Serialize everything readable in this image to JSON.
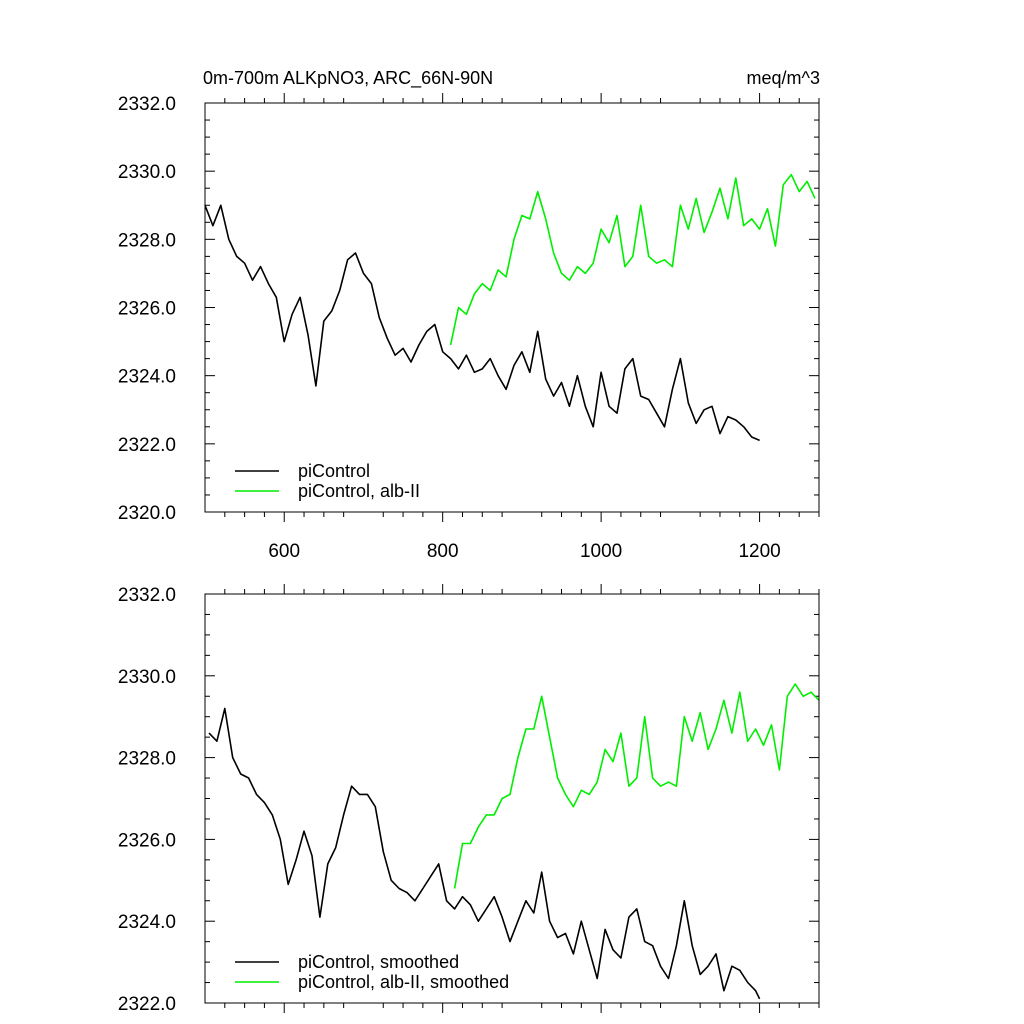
{
  "chart_data": [
    {
      "type": "line",
      "title": "0m-700m ALKpNO3, ARC_66N-90N",
      "units": "meq/m^3",
      "xlim": [
        500,
        1275
      ],
      "ylim": [
        2320.0,
        2332.0
      ],
      "x_ticks": [
        600,
        800,
        1000,
        1200
      ],
      "x_tick_labels": [
        "600",
        "800",
        "1000",
        "1200"
      ],
      "y_ticks": [
        2320.0,
        2322.0,
        2324.0,
        2326.0,
        2328.0,
        2330.0,
        2332.0
      ],
      "y_tick_labels": [
        "2320.0",
        "2322.0",
        "2324.0",
        "2326.0",
        "2328.0",
        "2330.0",
        "2332.0"
      ],
      "legend_position": "bottom-left",
      "series": [
        {
          "name": "piControl",
          "color": "#000000",
          "x": [
            500,
            510,
            520,
            530,
            540,
            550,
            560,
            570,
            580,
            590,
            600,
            610,
            620,
            630,
            640,
            650,
            660,
            670,
            680,
            690,
            700,
            710,
            720,
            730,
            740,
            750,
            760,
            770,
            780,
            790,
            800,
            810,
            820,
            830,
            840,
            850,
            860,
            870,
            880,
            890,
            900,
            910,
            920,
            930,
            940,
            950,
            960,
            970,
            980,
            990,
            1000,
            1010,
            1020,
            1030,
            1040,
            1050,
            1060,
            1070,
            1080,
            1090,
            1100,
            1110,
            1120,
            1130,
            1140,
            1150,
            1160,
            1170,
            1180,
            1190,
            1200
          ],
          "y": [
            2329.0,
            2328.4,
            2329.0,
            2328.0,
            2327.5,
            2327.3,
            2326.8,
            2327.2,
            2326.7,
            2326.3,
            2325.0,
            2325.8,
            2326.3,
            2325.2,
            2323.7,
            2325.6,
            2325.9,
            2326.5,
            2327.4,
            2327.6,
            2327.0,
            2326.7,
            2325.7,
            2325.1,
            2324.6,
            2324.8,
            2324.4,
            2324.9,
            2325.3,
            2325.5,
            2324.7,
            2324.5,
            2324.2,
            2324.6,
            2324.1,
            2324.2,
            2324.5,
            2324.0,
            2323.6,
            2324.3,
            2324.7,
            2324.1,
            2325.3,
            2323.9,
            2323.4,
            2323.8,
            2323.1,
            2324.0,
            2323.1,
            2322.5,
            2324.1,
            2323.1,
            2322.9,
            2324.2,
            2324.5,
            2323.4,
            2323.3,
            2322.9,
            2322.5,
            2323.6,
            2324.5,
            2323.2,
            2322.6,
            2323.0,
            2323.1,
            2322.3,
            2322.8,
            2322.7,
            2322.5,
            2322.2,
            2322.1
          ]
        },
        {
          "name": "piControl, alb-II",
          "color": "#00ee00",
          "x": [
            810,
            820,
            830,
            840,
            850,
            860,
            870,
            880,
            890,
            900,
            910,
            920,
            930,
            940,
            950,
            960,
            970,
            980,
            990,
            1000,
            1010,
            1020,
            1030,
            1040,
            1050,
            1060,
            1070,
            1080,
            1090,
            1100,
            1110,
            1120,
            1130,
            1140,
            1150,
            1160,
            1170,
            1180,
            1190,
            1200,
            1210,
            1220,
            1230,
            1240,
            1250,
            1260,
            1270
          ],
          "y": [
            2324.9,
            2326.0,
            2325.8,
            2326.4,
            2326.7,
            2326.5,
            2327.1,
            2326.9,
            2328.0,
            2328.7,
            2328.6,
            2329.4,
            2328.6,
            2327.6,
            2327.0,
            2326.8,
            2327.2,
            2327.0,
            2327.3,
            2328.3,
            2327.9,
            2328.7,
            2327.2,
            2327.5,
            2329.0,
            2327.5,
            2327.3,
            2327.4,
            2327.2,
            2329.0,
            2328.3,
            2329.2,
            2328.2,
            2328.8,
            2329.5,
            2328.6,
            2329.8,
            2328.4,
            2328.6,
            2328.3,
            2328.9,
            2327.8,
            2329.6,
            2329.9,
            2329.4,
            2329.7,
            2329.2
          ]
        }
      ]
    },
    {
      "type": "line",
      "xlim": [
        500,
        1275
      ],
      "ylim": [
        2322.0,
        2332.0
      ],
      "x_ticks": [
        600,
        800,
        1000,
        1200
      ],
      "y_ticks": [
        2322.0,
        2324.0,
        2326.0,
        2328.0,
        2330.0,
        2332.0
      ],
      "y_tick_labels": [
        "2322.0",
        "2324.0",
        "2326.0",
        "2328.0",
        "2330.0",
        "2332.0"
      ],
      "legend_position": "bottom-left",
      "series": [
        {
          "name": "piControl, smoothed",
          "color": "#000000",
          "x": [
            505,
            515,
            525,
            535,
            545,
            555,
            565,
            575,
            585,
            595,
            605,
            615,
            625,
            635,
            645,
            655,
            665,
            675,
            685,
            695,
            705,
            715,
            725,
            735,
            745,
            755,
            765,
            775,
            785,
            795,
            805,
            815,
            825,
            835,
            845,
            855,
            865,
            875,
            885,
            895,
            905,
            915,
            925,
            935,
            945,
            955,
            965,
            975,
            985,
            995,
            1005,
            1015,
            1025,
            1035,
            1045,
            1055,
            1065,
            1075,
            1085,
            1095,
            1105,
            1115,
            1125,
            1135,
            1145,
            1155,
            1165,
            1175,
            1185,
            1195,
            1200
          ],
          "y": [
            2328.6,
            2328.4,
            2329.2,
            2328.0,
            2327.6,
            2327.5,
            2327.1,
            2326.9,
            2326.6,
            2326.0,
            2324.9,
            2325.5,
            2326.2,
            2325.6,
            2324.1,
            2325.4,
            2325.8,
            2326.6,
            2327.3,
            2327.1,
            2327.1,
            2326.8,
            2325.7,
            2325.0,
            2324.8,
            2324.7,
            2324.5,
            2324.8,
            2325.1,
            2325.4,
            2324.5,
            2324.3,
            2324.6,
            2324.4,
            2324.0,
            2324.3,
            2324.6,
            2324.1,
            2323.5,
            2324.0,
            2324.5,
            2324.2,
            2325.2,
            2324.0,
            2323.6,
            2323.7,
            2323.2,
            2324.0,
            2323.3,
            2322.6,
            2323.8,
            2323.3,
            2323.1,
            2324.1,
            2324.3,
            2323.5,
            2323.4,
            2322.9,
            2322.6,
            2323.4,
            2324.5,
            2323.4,
            2322.7,
            2322.9,
            2323.2,
            2322.3,
            2322.9,
            2322.8,
            2322.5,
            2322.3,
            2322.1
          ]
        },
        {
          "name": "piControl, alb-II, smoothed",
          "color": "#00ee00",
          "x": [
            815,
            825,
            835,
            845,
            855,
            865,
            875,
            885,
            895,
            905,
            915,
            925,
            935,
            945,
            955,
            965,
            975,
            985,
            995,
            1005,
            1015,
            1025,
            1035,
            1045,
            1055,
            1065,
            1075,
            1085,
            1095,
            1105,
            1115,
            1125,
            1135,
            1145,
            1155,
            1165,
            1175,
            1185,
            1195,
            1205,
            1215,
            1225,
            1235,
            1245,
            1255,
            1265,
            1275
          ],
          "y": [
            2324.8,
            2325.9,
            2325.9,
            2326.3,
            2326.6,
            2326.6,
            2327.0,
            2327.1,
            2328.0,
            2328.7,
            2328.7,
            2329.5,
            2328.5,
            2327.5,
            2327.1,
            2326.8,
            2327.2,
            2327.1,
            2327.4,
            2328.2,
            2327.9,
            2328.6,
            2327.3,
            2327.5,
            2329.0,
            2327.5,
            2327.3,
            2327.4,
            2327.3,
            2329.0,
            2328.4,
            2329.1,
            2328.2,
            2328.7,
            2329.4,
            2328.6,
            2329.6,
            2328.4,
            2328.7,
            2328.3,
            2328.8,
            2327.7,
            2329.5,
            2329.8,
            2329.5,
            2329.6,
            2329.4
          ]
        }
      ]
    }
  ]
}
